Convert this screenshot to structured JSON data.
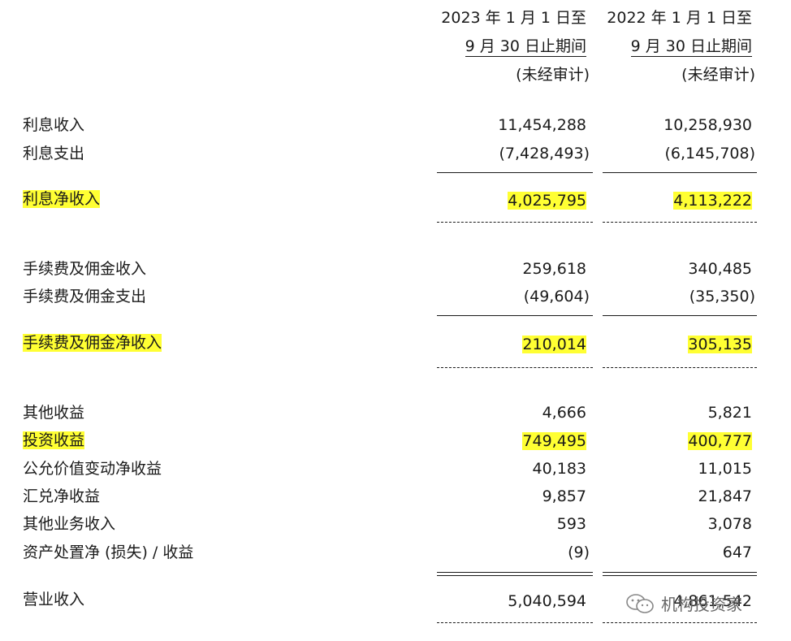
{
  "header": {
    "col1": {
      "line1": "2023 年 1 月 1 日至",
      "line2": "9 月 30 日止期间",
      "line3": "(未经审计)"
    },
    "col2": {
      "line1": "2022 年 1 月 1 日至",
      "line2": "9 月 30 日止期间",
      "line3": "(未经审计)"
    }
  },
  "rows": [
    {
      "label": "利息收入",
      "v2023": "11,454,288",
      "v2022": "10,258,930"
    },
    {
      "label": "利息支出",
      "v2023": "(7,428,493)",
      "v2022": "(6,145,708)"
    },
    {
      "label": "利息净收入",
      "v2023": "4,025,795",
      "v2022": "4,113,222"
    },
    {
      "label": "手续费及佣金收入",
      "v2023": "259,618",
      "v2022": "340,485"
    },
    {
      "label": "手续费及佣金支出",
      "v2023": "(49,604)",
      "v2022": "(35,350)"
    },
    {
      "label": "手续费及佣金净收入",
      "v2023": "210,014",
      "v2022": "305,135"
    },
    {
      "label": "其他收益",
      "v2023": "4,666",
      "v2022": "5,821"
    },
    {
      "label": "投资收益",
      "v2023": "749,495",
      "v2022": "400,777"
    },
    {
      "label": "公允价值变动净收益",
      "v2023": "40,183",
      "v2022": "11,015"
    },
    {
      "label": "汇兑净收益",
      "v2023": "9,857",
      "v2022": "21,847"
    },
    {
      "label": "其他业务收入",
      "v2023": "593",
      "v2022": "3,078"
    },
    {
      "label": "资产处置净 (损失) / 收益",
      "v2023": "(9)",
      "v2022": "647"
    },
    {
      "label": "营业收入",
      "v2023": "5,040,594",
      "v2022": "4,861,542"
    }
  ],
  "watermark": {
    "text": "机构投资家",
    "icon": "wechat-icon"
  },
  "colors": {
    "highlight": "#ffff33"
  }
}
